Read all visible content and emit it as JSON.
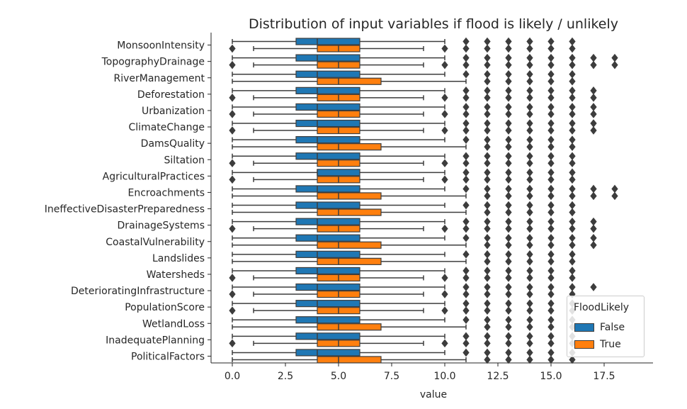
{
  "chart_data": {
    "type": "boxplot",
    "orientation": "horizontal",
    "title": "Distribution of input variables if flood is likely / unlikely",
    "xlabel": "value",
    "ylabel": "",
    "xlim": [
      -1,
      19.8
    ],
    "xticks": [
      0.0,
      2.5,
      5.0,
      7.5,
      10.0,
      12.5,
      15.0,
      17.5
    ],
    "xtick_labels": [
      "0.0",
      "2.5",
      "5.0",
      "7.5",
      "10.0",
      "12.5",
      "15.0",
      "17.5"
    ],
    "grid": false,
    "legend": {
      "title": "FloodLikely",
      "placement": "lower-right",
      "entries": [
        {
          "label": "False",
          "color": "#1f77b4"
        },
        {
          "label": "True",
          "color": "#ff7f0e"
        }
      ]
    },
    "series_colors": {
      "False": "#1f77b4",
      "True": "#ff7f0e"
    },
    "categories": [
      {
        "name": "MonsoonIntensity",
        "False": {
          "whislo": 0,
          "q1": 3,
          "med": 4,
          "q3": 6,
          "whishi": 10,
          "fliers": [
            11,
            12,
            13,
            14,
            15,
            16
          ]
        },
        "True": {
          "whislo": 1,
          "q1": 4,
          "med": 5,
          "q3": 6,
          "whishi": 9,
          "fliers": [
            0,
            10,
            11,
            12,
            13,
            14,
            15,
            16
          ]
        }
      },
      {
        "name": "TopographyDrainage",
        "False": {
          "whislo": 0,
          "q1": 3,
          "med": 4,
          "q3": 6,
          "whishi": 10,
          "fliers": [
            11,
            12,
            13,
            14,
            15,
            16,
            17,
            18
          ]
        },
        "True": {
          "whislo": 1,
          "q1": 4,
          "med": 5,
          "q3": 6,
          "whishi": 9,
          "fliers": [
            0,
            10,
            11,
            12,
            13,
            14,
            15,
            16,
            17,
            18
          ]
        }
      },
      {
        "name": "RiverManagement",
        "False": {
          "whislo": 0,
          "q1": 3,
          "med": 4,
          "q3": 6,
          "whishi": 10,
          "fliers": [
            11,
            12,
            13,
            14,
            15,
            16
          ]
        },
        "True": {
          "whislo": 0,
          "q1": 4,
          "med": 5,
          "q3": 7,
          "whishi": 11,
          "fliers": [
            12,
            13,
            14,
            15,
            16
          ]
        }
      },
      {
        "name": "Deforestation",
        "False": {
          "whislo": 0,
          "q1": 3,
          "med": 4,
          "q3": 6,
          "whishi": 10,
          "fliers": [
            11,
            12,
            13,
            14,
            15,
            16,
            17
          ]
        },
        "True": {
          "whislo": 1,
          "q1": 4,
          "med": 5,
          "q3": 6,
          "whishi": 9,
          "fliers": [
            0,
            10,
            11,
            12,
            13,
            14,
            15,
            16,
            17
          ]
        }
      },
      {
        "name": "Urbanization",
        "False": {
          "whislo": 0,
          "q1": 3,
          "med": 4,
          "q3": 6,
          "whishi": 10,
          "fliers": [
            11,
            12,
            13,
            14,
            15,
            16,
            17
          ]
        },
        "True": {
          "whislo": 1,
          "q1": 4,
          "med": 5,
          "q3": 6,
          "whishi": 9,
          "fliers": [
            0,
            10,
            11,
            12,
            13,
            14,
            15,
            16,
            17
          ]
        }
      },
      {
        "name": "ClimateChange",
        "False": {
          "whislo": 0,
          "q1": 3,
          "med": 4,
          "q3": 6,
          "whishi": 10,
          "fliers": [
            11,
            12,
            13,
            14,
            15,
            16,
            17
          ]
        },
        "True": {
          "whislo": 1,
          "q1": 4,
          "med": 5,
          "q3": 6,
          "whishi": 9,
          "fliers": [
            0,
            10,
            11,
            12,
            13,
            14,
            15,
            16,
            17
          ]
        }
      },
      {
        "name": "DamsQuality",
        "False": {
          "whislo": 0,
          "q1": 3,
          "med": 4,
          "q3": 6,
          "whishi": 10,
          "fliers": [
            11,
            12,
            13,
            14,
            15,
            16
          ]
        },
        "True": {
          "whislo": 0,
          "q1": 4,
          "med": 5,
          "q3": 7,
          "whishi": 11,
          "fliers": [
            12,
            13,
            14,
            15,
            16
          ]
        }
      },
      {
        "name": "Siltation",
        "False": {
          "whislo": 0,
          "q1": 3,
          "med": 4,
          "q3": 6,
          "whishi": 10,
          "fliers": [
            11,
            12,
            13,
            14,
            15,
            16
          ]
        },
        "True": {
          "whislo": 1,
          "q1": 4,
          "med": 5,
          "q3": 6,
          "whishi": 9,
          "fliers": [
            0,
            10,
            11,
            12,
            13,
            14,
            15,
            16
          ]
        }
      },
      {
        "name": "AgriculturalPractices",
        "False": {
          "whislo": 0,
          "q1": 4,
          "med": 4,
          "q3": 6,
          "whishi": 10,
          "fliers": [
            11,
            12,
            13,
            14,
            15,
            16
          ]
        },
        "True": {
          "whislo": 1,
          "q1": 4,
          "med": 5,
          "q3": 6,
          "whishi": 9,
          "fliers": [
            0,
            10,
            11,
            12,
            13,
            14,
            15,
            16
          ]
        }
      },
      {
        "name": "Encroachments",
        "False": {
          "whislo": 0,
          "q1": 3,
          "med": 4,
          "q3": 6,
          "whishi": 10,
          "fliers": [
            11,
            12,
            13,
            14,
            15,
            16,
            17,
            18
          ]
        },
        "True": {
          "whislo": 0,
          "q1": 4,
          "med": 5,
          "q3": 7,
          "whishi": 11,
          "fliers": [
            12,
            13,
            14,
            15,
            16,
            17,
            18
          ]
        }
      },
      {
        "name": "IneffectiveDisasterPreparedness",
        "False": {
          "whislo": 0,
          "q1": 3,
          "med": 4,
          "q3": 6,
          "whishi": 10,
          "fliers": [
            11,
            12,
            13,
            14,
            15,
            16
          ]
        },
        "True": {
          "whislo": 0,
          "q1": 4,
          "med": 5,
          "q3": 7,
          "whishi": 11,
          "fliers": [
            12,
            13,
            14,
            15,
            16
          ]
        }
      },
      {
        "name": "DrainageSystems",
        "False": {
          "whislo": 0,
          "q1": 3,
          "med": 4,
          "q3": 6,
          "whishi": 10,
          "fliers": [
            11,
            12,
            13,
            14,
            15,
            16,
            17
          ]
        },
        "True": {
          "whislo": 1,
          "q1": 4,
          "med": 5,
          "q3": 6,
          "whishi": 9,
          "fliers": [
            0,
            10,
            11,
            12,
            13,
            14,
            15,
            16,
            17
          ]
        }
      },
      {
        "name": "CoastalVulnerability",
        "False": {
          "whislo": 0,
          "q1": 3,
          "med": 4,
          "q3": 6,
          "whishi": 10,
          "fliers": [
            11,
            12,
            13,
            14,
            15,
            16,
            17
          ]
        },
        "True": {
          "whislo": 0,
          "q1": 4,
          "med": 5,
          "q3": 7,
          "whishi": 11,
          "fliers": [
            12,
            13,
            14,
            15,
            16,
            17
          ]
        }
      },
      {
        "name": "Landslides",
        "False": {
          "whislo": 0,
          "q1": 3,
          "med": 4,
          "q3": 6,
          "whishi": 10,
          "fliers": [
            11,
            12,
            13,
            14,
            15,
            16
          ]
        },
        "True": {
          "whislo": 0,
          "q1": 4,
          "med": 5,
          "q3": 7,
          "whishi": 11,
          "fliers": [
            12,
            13,
            14,
            15,
            16
          ]
        }
      },
      {
        "name": "Watersheds",
        "False": {
          "whislo": 0,
          "q1": 3,
          "med": 4,
          "q3": 6,
          "whishi": 10,
          "fliers": [
            11,
            12,
            13,
            14,
            15,
            16
          ]
        },
        "True": {
          "whislo": 1,
          "q1": 4,
          "med": 5,
          "q3": 6,
          "whishi": 9,
          "fliers": [
            0,
            10,
            11,
            12,
            13,
            14,
            15,
            16
          ]
        }
      },
      {
        "name": "DeterioratingInfrastructure",
        "False": {
          "whislo": 0,
          "q1": 3,
          "med": 4,
          "q3": 6,
          "whishi": 10,
          "fliers": [
            11,
            12,
            13,
            14,
            15,
            16,
            17
          ]
        },
        "True": {
          "whislo": 1,
          "q1": 4,
          "med": 5,
          "q3": 6,
          "whishi": 9,
          "fliers": [
            0,
            10,
            11,
            12,
            13,
            14,
            15,
            16
          ]
        }
      },
      {
        "name": "PopulationScore",
        "False": {
          "whislo": 0,
          "q1": 3,
          "med": 4,
          "q3": 6,
          "whishi": 10,
          "fliers": [
            11,
            12,
            13,
            14,
            15,
            16
          ]
        },
        "True": {
          "whislo": 1,
          "q1": 4,
          "med": 5,
          "q3": 6,
          "whishi": 9,
          "fliers": [
            0,
            10,
            11,
            12,
            13,
            14,
            15,
            16
          ]
        }
      },
      {
        "name": "WetlandLoss",
        "False": {
          "whislo": 0,
          "q1": 3,
          "med": 4,
          "q3": 6,
          "whishi": 10,
          "fliers": [
            11,
            12,
            13,
            14,
            15,
            16
          ]
        },
        "True": {
          "whislo": 0,
          "q1": 4,
          "med": 5,
          "q3": 7,
          "whishi": 11,
          "fliers": [
            12,
            13,
            14,
            15,
            16
          ]
        }
      },
      {
        "name": "InadequatePlanning",
        "False": {
          "whislo": 0,
          "q1": 3,
          "med": 4,
          "q3": 6,
          "whishi": 10,
          "fliers": [
            11,
            12,
            13,
            14,
            15,
            16
          ]
        },
        "True": {
          "whislo": 1,
          "q1": 4,
          "med": 5,
          "q3": 6,
          "whishi": 9,
          "fliers": [
            0,
            10,
            11,
            12,
            13,
            14,
            15,
            16
          ]
        }
      },
      {
        "name": "PoliticalFactors",
        "False": {
          "whislo": 0,
          "q1": 3,
          "med": 4,
          "q3": 6,
          "whishi": 10,
          "fliers": [
            11,
            12,
            13,
            14,
            15,
            16
          ]
        },
        "True": {
          "whislo": 0,
          "q1": 4,
          "med": 5,
          "q3": 7,
          "whishi": 11,
          "fliers": [
            12,
            13,
            14,
            15,
            16
          ]
        }
      }
    ]
  }
}
